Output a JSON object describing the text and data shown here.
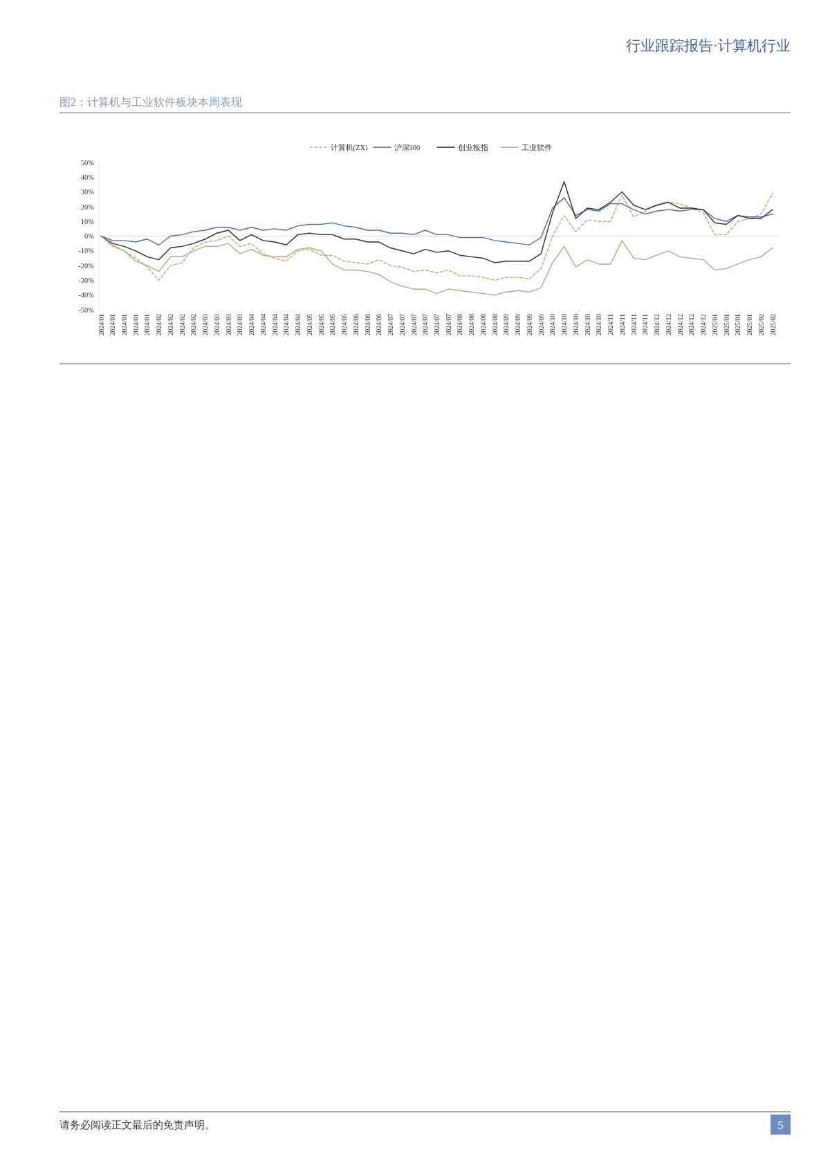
{
  "chart_data": {
    "type": "line",
    "title": "图2：计算机与工业软件板块本周表现",
    "categories": [
      "2024/01",
      "2024/01",
      "2024/01",
      "2024/01",
      "2024/01",
      "2024/02",
      "2024/02",
      "2024/02",
      "2024/02",
      "2024/03",
      "2024/03",
      "2024/03",
      "2024/03",
      "2024/04",
      "2024/04",
      "2024/04",
      "2024/04",
      "2024/04",
      "2024/05",
      "2024/05",
      "2024/05",
      "2024/05",
      "2024/06",
      "2024/06",
      "2024/06",
      "2024/07",
      "2024/07",
      "2024/07",
      "2024/07",
      "2024/07",
      "2024/07",
      "2024/08",
      "2024/08",
      "2024/08",
      "2024/08",
      "2024/09",
      "2024/09",
      "2024/09",
      "2024/09",
      "2024/10",
      "2024/10",
      "2024/10",
      "2024/10",
      "2024/10",
      "2024/11",
      "2024/11",
      "2024/11",
      "2024/11",
      "2024/12",
      "2024/12",
      "2024/12",
      "2024/12",
      "2024/12",
      "2025/01",
      "2025/01",
      "2025/01",
      "2025/01",
      "2025/02",
      "2025/02"
    ],
    "series": [
      {
        "name": "计算机(ZX)",
        "color": "#c9a46e",
        "line_style": "dashed",
        "values": [
          0,
          -7,
          -10,
          -15,
          -21,
          -30,
          -20,
          -18,
          -8,
          -4,
          -3,
          0,
          -7,
          -5,
          -12,
          -15,
          -17,
          -10,
          -9,
          -13,
          -13,
          -17,
          -18,
          -19,
          -16,
          -20,
          -21,
          -24,
          -23,
          -25,
          -23,
          -27,
          -27,
          -28,
          -30,
          -28,
          -28,
          -29,
          -22,
          0,
          14,
          3,
          11,
          10,
          10,
          28,
          13,
          17,
          21,
          23,
          22,
          19,
          16,
          1,
          1,
          10,
          12,
          15,
          29
        ]
      },
      {
        "name": "沪深300",
        "color": "#4a6fa8",
        "values": [
          0,
          -3,
          -3,
          -4,
          -2,
          -6,
          0,
          1,
          3,
          4,
          6,
          6,
          4,
          6,
          4,
          5,
          4,
          7,
          8,
          8,
          9,
          7,
          6,
          4,
          4,
          2,
          2,
          1,
          4,
          1,
          1,
          -1,
          -1,
          -1,
          -3,
          -4,
          -5,
          -6,
          -1,
          19,
          26,
          14,
          18,
          17,
          22,
          22,
          18,
          15,
          17,
          18,
          17,
          18,
          18,
          12,
          10,
          14,
          13,
          13,
          15
        ]
      },
      {
        "name": "创业板指",
        "color": "#2b2d38",
        "values": [
          0,
          -5,
          -7,
          -10,
          -14,
          -16,
          -8,
          -7,
          -5,
          -2,
          2,
          4,
          -3,
          1,
          -3,
          -4,
          -6,
          1,
          2,
          1,
          1,
          -2,
          -2,
          -4,
          -4,
          -8,
          -10,
          -12,
          -9,
          -11,
          -10,
          -13,
          -14,
          -15,
          -18,
          -17,
          -17,
          -17,
          -12,
          16,
          37,
          12,
          19,
          18,
          23,
          30,
          21,
          18,
          21,
          23,
          19,
          19,
          18,
          9,
          8,
          14,
          12,
          12,
          18
        ]
      },
      {
        "name": "工业软件",
        "color": "#bfa47e",
        "values": [
          0,
          -6,
          -10,
          -17,
          -20,
          -24,
          -14,
          -14,
          -10,
          -7,
          -7,
          -5,
          -12,
          -9,
          -13,
          -14,
          -14,
          -9,
          -8,
          -10,
          -19,
          -23,
          -23,
          -24,
          -26,
          -31,
          -34,
          -36,
          -36,
          -39,
          -36,
          -37,
          -38,
          -39,
          -40,
          -38,
          -37,
          -38,
          -35,
          -18,
          -7,
          -21,
          -16,
          -19,
          -19,
          -3,
          -15,
          -16,
          -13,
          -10,
          -14,
          -15,
          -16,
          -23,
          -22,
          -19,
          -16,
          -14,
          -8
        ]
      }
    ],
    "ylim": [
      -50,
      50
    ],
    "yticks": [
      {
        "value": -50,
        "label": "-50%"
      },
      {
        "value": -40,
        "label": "-40%"
      },
      {
        "value": -30,
        "label": "-30%"
      },
      {
        "value": -20,
        "label": "-20%"
      },
      {
        "value": -10,
        "label": "-10%"
      },
      {
        "value": 0,
        "label": "0%"
      },
      {
        "value": 10,
        "label": "10%"
      },
      {
        "value": 20,
        "label": "20%"
      },
      {
        "value": 30,
        "label": "30%"
      },
      {
        "value": 40,
        "label": "40%"
      },
      {
        "value": 50,
        "label": "50%"
      }
    ],
    "ref_lines": [
      {
        "axis": "y",
        "value": 0,
        "color": "#d9d9d9"
      }
    ],
    "legend": "top",
    "grid": false,
    "annotations": [
      "行业跟踪报告·计算机行业",
      "请务必阅读正文最后的免责声明。",
      "5"
    ]
  }
}
